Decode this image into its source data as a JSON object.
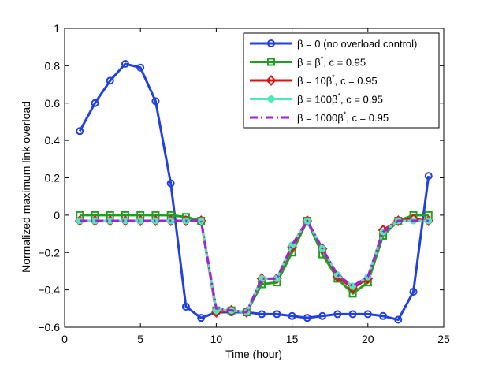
{
  "chart_data": {
    "type": "line",
    "title": "",
    "xlabel": "Time (hour)",
    "ylabel": "Normalized maximum link overload",
    "xlim": [
      0,
      25
    ],
    "ylim": [
      -0.6,
      1
    ],
    "xticks": [
      0,
      5,
      10,
      15,
      20,
      25
    ],
    "yticks": [
      -0.6,
      -0.4,
      -0.2,
      0,
      0.2,
      0.4,
      0.6,
      0.8,
      1
    ],
    "xtick_labels": [
      "0",
      "5",
      "10",
      "15",
      "20",
      "25"
    ],
    "ytick_labels": [
      "−0.6",
      "−0.4",
      "−0.2",
      "0",
      "0.2",
      "0.4",
      "0.6",
      "0.8",
      "1"
    ],
    "grid": false,
    "legend_position": "top-right",
    "x": [
      1,
      2,
      3,
      4,
      5,
      6,
      7,
      8,
      9,
      10,
      11,
      12,
      13,
      14,
      15,
      16,
      17,
      18,
      19,
      20,
      21,
      22,
      23,
      24
    ],
    "series": [
      {
        "name": "β = 0 (no overload control)",
        "legend": {
          "base": "β = 0 (no overload control)",
          "sup": "",
          "tail": ""
        },
        "color": "#2040e0",
        "marker": "circle",
        "dash": "solid",
        "values": [
          0.45,
          0.6,
          0.72,
          0.81,
          0.79,
          0.61,
          0.17,
          -0.49,
          -0.55,
          -0.52,
          -0.52,
          -0.52,
          -0.53,
          -0.53,
          -0.54,
          -0.55,
          -0.54,
          -0.53,
          -0.53,
          -0.53,
          -0.54,
          -0.56,
          -0.41,
          0.21
        ]
      },
      {
        "name": "β = β*, c = 0.95",
        "legend": {
          "base": "β = β",
          "sup": "*",
          "tail": ", c = 0.95"
        },
        "color": "#20a020",
        "marker": "square",
        "dash": "solid",
        "values": [
          0.0,
          0.0,
          0.0,
          0.0,
          0.0,
          0.0,
          0.0,
          -0.01,
          -0.03,
          -0.51,
          -0.51,
          -0.52,
          -0.37,
          -0.36,
          -0.2,
          -0.03,
          -0.21,
          -0.34,
          -0.42,
          -0.36,
          -0.11,
          -0.03,
          0.0,
          0.0
        ]
      },
      {
        "name": "β = 10β*, c = 0.95",
        "legend": {
          "base": "β = 10β",
          "sup": "*",
          "tail": ", c = 0.95"
        },
        "color": "#e01010",
        "marker": "diamond",
        "dash": "solid",
        "values": [
          -0.03,
          -0.03,
          -0.03,
          -0.03,
          -0.03,
          -0.03,
          -0.03,
          -0.03,
          -0.03,
          -0.52,
          -0.51,
          -0.52,
          -0.34,
          -0.34,
          -0.17,
          -0.03,
          -0.18,
          -0.33,
          -0.39,
          -0.34,
          -0.08,
          -0.03,
          -0.02,
          -0.03
        ]
      },
      {
        "name": "β = 100β*, c = 0.95",
        "legend": {
          "base": "β = 100β",
          "sup": "*",
          "tail": ", c = 0.95"
        },
        "color": "#50e8b8",
        "marker": "dot",
        "dash": "solid",
        "values": [
          -0.03,
          -0.03,
          -0.03,
          -0.03,
          -0.03,
          -0.03,
          -0.03,
          -0.03,
          -0.03,
          -0.51,
          -0.51,
          -0.52,
          -0.34,
          -0.34,
          -0.16,
          -0.03,
          -0.18,
          -0.32,
          -0.38,
          -0.33,
          -0.09,
          -0.03,
          -0.03,
          -0.03
        ]
      },
      {
        "name": "β = 1000β*, c = 0.95",
        "legend": {
          "base": "β = 1000β",
          "sup": "*",
          "tail": ", c = 0.95"
        },
        "color": "#a020e0",
        "marker": "none",
        "dash": "dashdot",
        "values": [
          -0.03,
          -0.03,
          -0.03,
          -0.03,
          -0.03,
          -0.03,
          -0.03,
          -0.03,
          -0.03,
          -0.5,
          -0.51,
          -0.52,
          -0.34,
          -0.34,
          -0.16,
          -0.03,
          -0.18,
          -0.32,
          -0.38,
          -0.33,
          -0.09,
          -0.03,
          -0.03,
          -0.03
        ]
      }
    ]
  }
}
